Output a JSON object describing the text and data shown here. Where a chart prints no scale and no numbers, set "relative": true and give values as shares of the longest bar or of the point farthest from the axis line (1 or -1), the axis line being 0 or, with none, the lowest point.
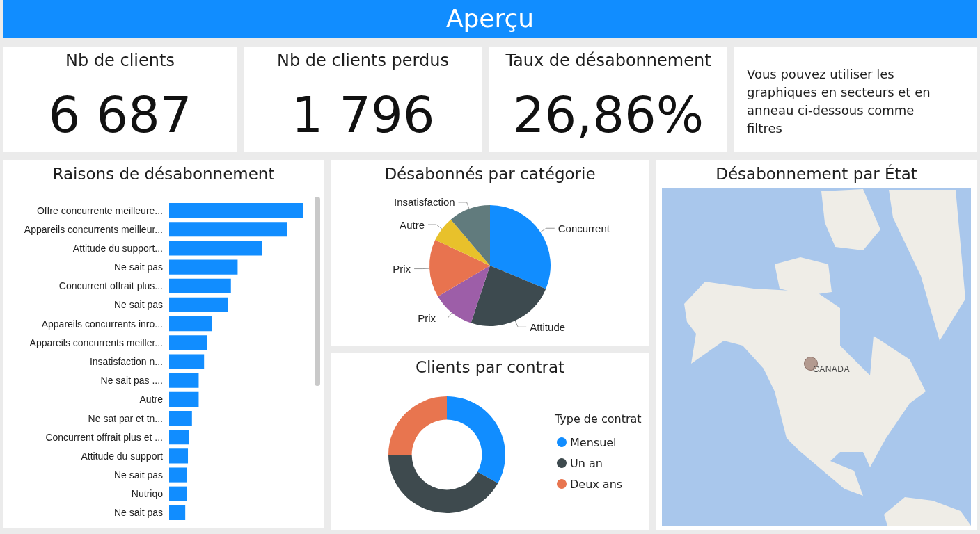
{
  "chart_data": [
    {
      "type": "other",
      "title": "Aperçu",
      "annotations": [
        "Nb de clients",
        "6 687",
        "Nb de clients perdus",
        "1 796",
        "Taux de désabonnement",
        "26,86%",
        "Vous pouvez utiliser les graphiques en secteurs et en anneau ci-dessous comme filtres"
      ]
    },
    {
      "type": "bar",
      "title": "Raisons de désabonnement",
      "orientation": "horizontal",
      "relative": true,
      "color": "#118dff",
      "categories": [
        "Offre concurrente meilleure...",
        "Appareils concurrents meilleur...",
        "Attitude du support...",
        "Ne sait pas",
        "Concurrent offrait plus...",
        "Ne sait pas",
        "Appareils concurrents inro...",
        "Appareils concurrents meiller...",
        "Insatisfaction n...",
        "Ne sait pas ....",
        "Autre",
        "Ne sat par et tn...",
        "Concurrent offrait plus et ...",
        "Attitude du support",
        "Ne sait pas",
        "Nutriqo",
        "Ne sait pas"
      ],
      "values": [
        1,
        0.88,
        0.69,
        0.51,
        0.46,
        0.44,
        0.32,
        0.28,
        0.26,
        0.22,
        0.22,
        0.17,
        0.15,
        0.14,
        0.13,
        0.13,
        0.12
      ]
    },
    {
      "type": "pie",
      "title": "Désabonnés par catégorie",
      "categories": [
        "Concurrent",
        "Attitude",
        "Prix",
        "Prix",
        "Autre",
        "Insatisfaction"
      ],
      "values": [
        31.3,
        23.8,
        11.4,
        15.5,
        6.8,
        11.2
      ],
      "colors": [
        "#118dff",
        "#3d4a4f",
        "#9d5ea8",
        "#e8734f",
        "#e8c12b",
        "#617b7d"
      ]
    },
    {
      "type": "donut",
      "title": "Clients par contrat",
      "categories": [
        "Mensuel",
        "Un an",
        "Deux ans"
      ],
      "values": [
        33.1,
        41.9,
        25
      ],
      "colors": [
        "#118dff",
        "#3e4a4e",
        "#e8754f"
      ],
      "legend": "right",
      "legend_title": "Type de contrat"
    },
    {
      "type": "other",
      "title": "Désabonnement par État",
      "annotations": [
        "CANADA"
      ]
    }
  ]
}
